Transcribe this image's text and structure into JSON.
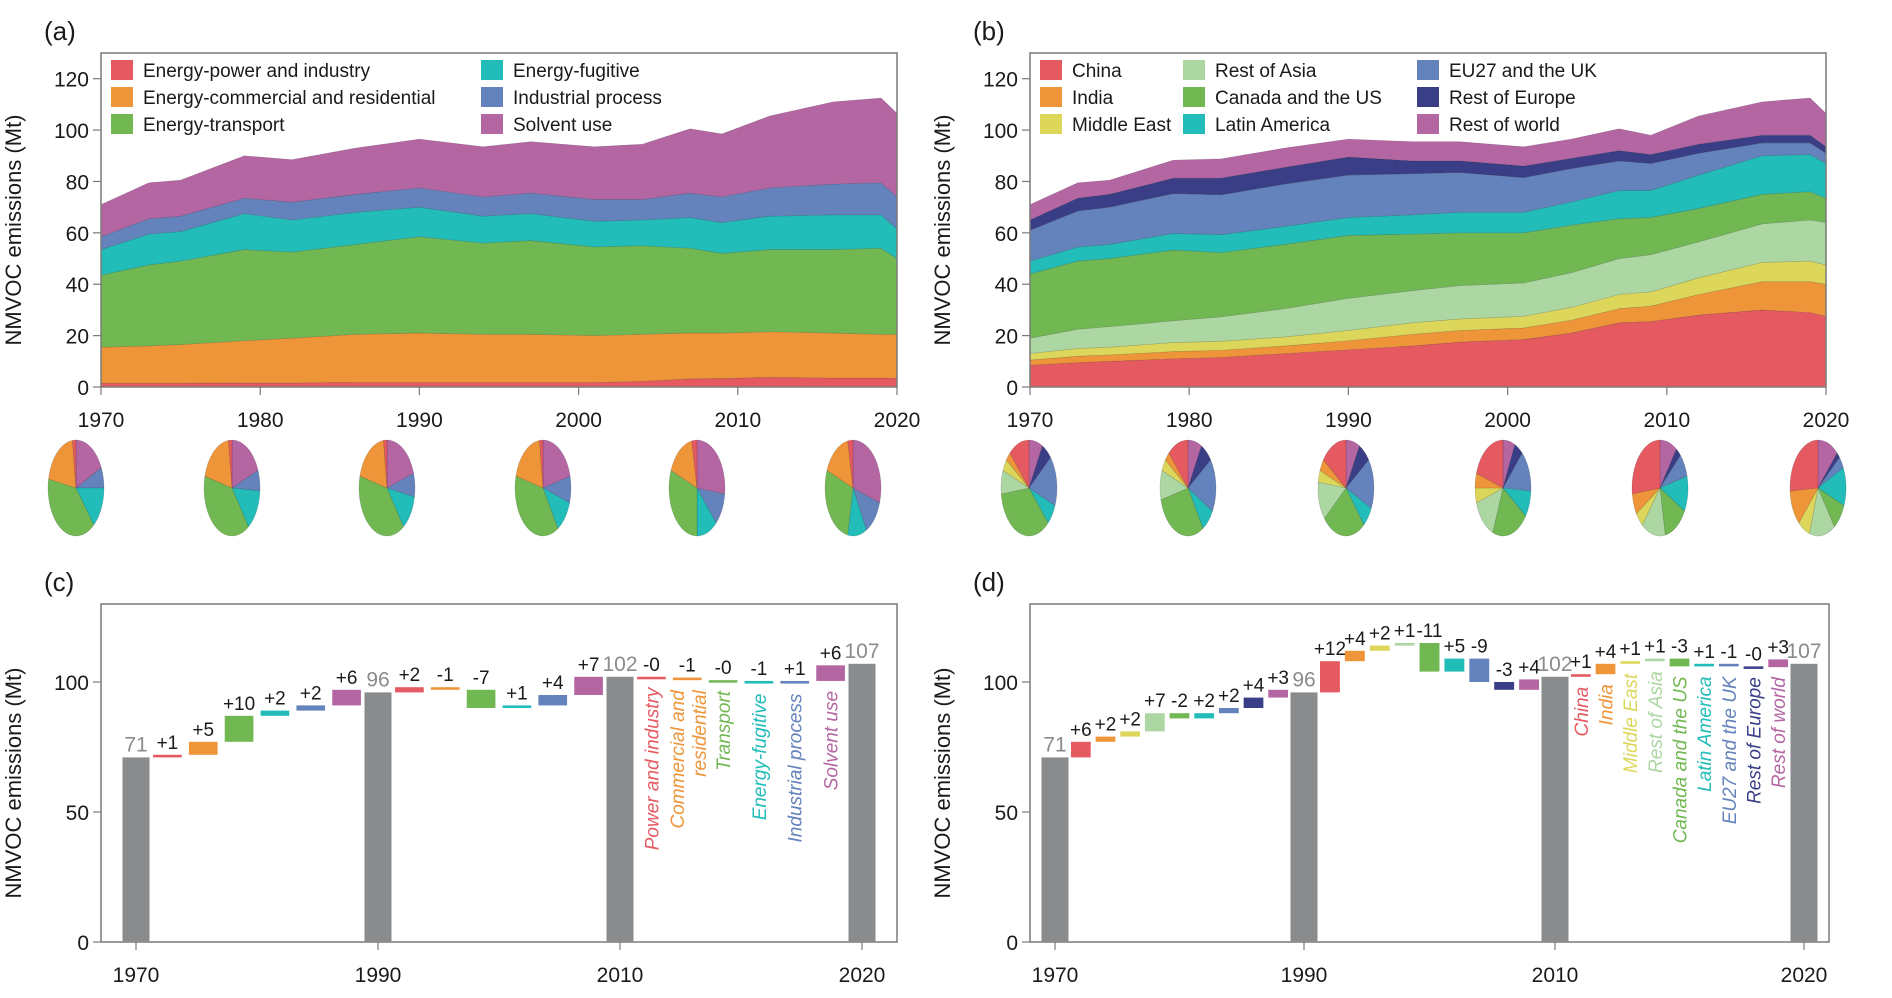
{
  "colors": {
    "energy_power": "#e55a61",
    "energy_comm": "#ee9539",
    "energy_transport": "#71b853",
    "energy_fugitive": "#22bcb9",
    "industrial": "#6482bb",
    "solvent": "#b466a3",
    "china": "#e55a61",
    "india": "#ee9539",
    "middle_east": "#dcd75a",
    "rest_asia": "#acd6a2",
    "canada_us": "#71b853",
    "latin_america": "#22bcb9",
    "eu_uk": "#6482bb",
    "rest_europe": "#393e86",
    "rest_world": "#b466a3",
    "total_bar": "#8a8b8d",
    "axis": "#7a7a7a"
  },
  "chart_data": [
    {
      "panel": "(a)",
      "type": "area",
      "ylabel": "NMVOC emissions (Mt)",
      "xlabel": "",
      "xlim": [
        1970,
        2020
      ],
      "ylim": [
        0,
        130
      ],
      "yticks": [
        0,
        20,
        40,
        60,
        80,
        100,
        120
      ],
      "xticks": [
        1970,
        1980,
        1990,
        2000,
        2010,
        2020
      ],
      "legend_position": "top-left",
      "x": [
        1970,
        1973,
        1975,
        1979,
        1982,
        1986,
        1990,
        1994,
        1997,
        2001,
        2004,
        2007,
        2009,
        2012,
        2016,
        2019,
        2020
      ],
      "series": [
        {
          "name": "Energy-power and industry",
          "color_key": "energy_power",
          "values": [
            1.5,
            1.5,
            1.5,
            1.6,
            1.6,
            1.8,
            1.8,
            1.8,
            1.8,
            1.8,
            2.2,
            3.2,
            3.3,
            3.8,
            3.5,
            3.5,
            3.4
          ]
        },
        {
          "name": "Energy-commercial and residential",
          "color_key": "energy_comm",
          "values": [
            14.0,
            14.5,
            15.0,
            16.4,
            17.4,
            18.7,
            19.2,
            18.7,
            18.7,
            18.2,
            18.3,
            17.8,
            17.7,
            17.7,
            17.5,
            17.0,
            17.1
          ]
        },
        {
          "name": "Energy-transport",
          "color_key": "energy_transport",
          "values": [
            28.0,
            31.5,
            32.5,
            35.5,
            33.5,
            35.0,
            37.5,
            35.5,
            36.5,
            34.5,
            34.5,
            33.0,
            31.0,
            32.0,
            32.5,
            33.5,
            29.5
          ]
        },
        {
          "name": "Energy-fugitive",
          "color_key": "energy_fugitive",
          "values": [
            10.0,
            12.0,
            11.5,
            14.0,
            12.5,
            12.5,
            11.5,
            10.5,
            10.5,
            10.0,
            10.0,
            12.0,
            12.0,
            13.0,
            13.5,
            13.0,
            11.5
          ]
        },
        {
          "name": "Industrial process",
          "color_key": "industrial",
          "values": [
            5.0,
            6.0,
            6.0,
            6.0,
            7.0,
            7.0,
            7.5,
            7.5,
            8.0,
            8.5,
            8.0,
            9.5,
            10.0,
            11.0,
            12.0,
            12.5,
            12.5
          ]
        },
        {
          "name": "Solvent use",
          "color_key": "solvent",
          "values": [
            12.5,
            14.0,
            14.0,
            16.5,
            16.5,
            18.0,
            19.0,
            19.5,
            20.0,
            20.5,
            21.5,
            25.0,
            24.5,
            28.0,
            32.0,
            33.0,
            32.5
          ]
        }
      ]
    },
    {
      "panel": "(b)",
      "type": "area",
      "ylabel": "NMVOC emissions (Mt)",
      "xlabel": "",
      "xlim": [
        1970,
        2020
      ],
      "ylim": [
        0,
        130
      ],
      "yticks": [
        0,
        20,
        40,
        60,
        80,
        100,
        120
      ],
      "xticks": [
        1970,
        1980,
        1990,
        2000,
        2010,
        2020
      ],
      "legend_position": "top-left",
      "x": [
        1970,
        1973,
        1975,
        1979,
        1982,
        1986,
        1990,
        1994,
        1997,
        2001,
        2004,
        2007,
        2009,
        2012,
        2016,
        2019,
        2020
      ],
      "series": [
        {
          "name": "China",
          "color_key": "china",
          "values": [
            8.5,
            9.5,
            10.0,
            11.0,
            11.5,
            13.0,
            14.5,
            16.0,
            17.5,
            18.5,
            21.0,
            25.0,
            25.5,
            28.0,
            30.0,
            29.0,
            27.5
          ]
        },
        {
          "name": "India",
          "color_key": "india",
          "values": [
            2.0,
            2.5,
            2.5,
            2.8,
            2.8,
            3.0,
            3.5,
            4.5,
            4.5,
            4.5,
            5.0,
            5.5,
            6.0,
            8.0,
            11.0,
            12.0,
            12.5
          ]
        },
        {
          "name": "Middle East",
          "color_key": "middle_east",
          "values": [
            2.5,
            3.0,
            3.0,
            3.5,
            3.5,
            3.5,
            4.0,
            4.5,
            4.5,
            4.5,
            5.0,
            5.5,
            5.5,
            6.5,
            7.5,
            8.0,
            7.5
          ]
        },
        {
          "name": "Rest of Asia",
          "color_key": "rest_asia",
          "values": [
            6.0,
            7.5,
            8.0,
            8.5,
            9.5,
            11.0,
            12.5,
            12.5,
            13.0,
            13.0,
            13.5,
            14.0,
            14.5,
            14.0,
            15.0,
            16.0,
            16.5
          ]
        },
        {
          "name": "Canada and the US",
          "color_key": "canada_us",
          "values": [
            25.0,
            26.5,
            26.5,
            27.5,
            25.0,
            25.0,
            24.5,
            22.0,
            20.5,
            19.5,
            18.5,
            15.5,
            14.5,
            13.0,
            11.5,
            11.0,
            9.5
          ]
        },
        {
          "name": "Latin America",
          "color_key": "latin_america",
          "values": [
            5.0,
            5.5,
            5.5,
            6.5,
            7.0,
            7.0,
            7.0,
            7.5,
            8.0,
            8.0,
            9.0,
            11.0,
            10.5,
            13.0,
            15.0,
            14.5,
            13.5
          ]
        },
        {
          "name": "EU27 and the UK",
          "color_key": "eu_uk",
          "values": [
            12.0,
            14.0,
            14.5,
            15.5,
            15.5,
            16.5,
            16.5,
            16.0,
            15.5,
            13.5,
            13.0,
            11.5,
            10.5,
            8.5,
            5.0,
            4.5,
            4.0
          ]
        },
        {
          "name": "Rest of Europe",
          "color_key": "rest_europe",
          "values": [
            4.0,
            5.0,
            5.0,
            6.0,
            6.5,
            6.5,
            7.0,
            5.0,
            4.5,
            4.5,
            4.0,
            4.0,
            3.5,
            3.5,
            3.0,
            3.0,
            2.5
          ]
        },
        {
          "name": "Rest of world",
          "color_key": "rest_world",
          "values": [
            6.0,
            6.0,
            5.5,
            7.0,
            7.5,
            7.5,
            7.0,
            7.5,
            7.5,
            7.5,
            7.5,
            8.5,
            7.5,
            11.0,
            13.0,
            14.5,
            13.0
          ]
        }
      ]
    },
    {
      "panel": "(a) pies",
      "type": "pie",
      "years": [
        1970,
        1980,
        1990,
        2000,
        2010,
        2020
      ],
      "categories": [
        "Energy-power and industry",
        "Energy-commercial and residential",
        "Energy-transport",
        "Energy-fugitive",
        "Industrial process",
        "Solvent use"
      ],
      "color_keys": [
        "energy_power",
        "energy_comm",
        "energy_transport",
        "energy_fugitive",
        "industrial",
        "solvent"
      ],
      "shares_percent": [
        [
          2,
          20,
          39,
          14,
          7,
          18
        ],
        [
          2,
          19,
          39,
          14,
          7,
          19
        ],
        [
          2,
          19,
          39,
          12,
          8,
          20
        ],
        [
          2,
          19,
          38,
          11,
          9,
          21
        ],
        [
          3,
          16,
          31,
          12,
          11,
          27
        ],
        [
          3,
          16,
          28,
          11,
          12,
          30
        ]
      ]
    },
    {
      "panel": "(b) pies",
      "type": "pie",
      "years": [
        1970,
        1980,
        1990,
        2000,
        2010,
        2020
      ],
      "categories": [
        "China",
        "India",
        "Middle East",
        "Rest of Asia",
        "Canada and the US",
        "Latin America",
        "EU27 and the UK",
        "Rest of Europe",
        "Rest of world"
      ],
      "color_keys": [
        "china",
        "india",
        "middle_east",
        "rest_asia",
        "canada_us",
        "latin_america",
        "eu_uk",
        "rest_europe",
        "rest_world"
      ],
      "shares_percent": [
        [
          12,
          3,
          4,
          8,
          35,
          7,
          17,
          6,
          8
        ],
        [
          12,
          3,
          4,
          10,
          30,
          8,
          18,
          7,
          8
        ],
        [
          15,
          4,
          4,
          13,
          25,
          7,
          17,
          7,
          8
        ],
        [
          20,
          5,
          5,
          14,
          21,
          9,
          14,
          5,
          7
        ],
        [
          27,
          7,
          5,
          14,
          14,
          12,
          8,
          3,
          10
        ],
        [
          26,
          12,
          7,
          15,
          9,
          13,
          4,
          2,
          12
        ]
      ]
    },
    {
      "panel": "(c)",
      "type": "bar",
      "subtype": "waterfall",
      "ylabel": "NMVOC emissions (Mt)",
      "ylim": [
        0,
        130
      ],
      "yticks": [
        0,
        50,
        100
      ],
      "xticks": [
        1970,
        1990,
        2010,
        2020
      ],
      "totals": [
        {
          "year": 1970,
          "value": 71,
          "label": "71"
        },
        {
          "year": 1990,
          "value": 96,
          "label": "96"
        },
        {
          "year": 2010,
          "value": 102,
          "label": "102"
        },
        {
          "year": 2020,
          "value": 107,
          "label": "107"
        }
      ],
      "category_labels": [
        "Power and industry",
        "Commercial and residential",
        "Transport",
        "Energy-fugitive",
        "Industrial process",
        "Solvent use"
      ],
      "category_color_keys": [
        "energy_power",
        "energy_comm",
        "energy_transport",
        "energy_fugitive",
        "industrial",
        "solvent"
      ],
      "periods": [
        {
          "from": 1970,
          "to": 1990,
          "changes": [
            1,
            5,
            10,
            2,
            2,
            6
          ],
          "labels": [
            "+1",
            "+5",
            "+10",
            "+2",
            "+2",
            "+6"
          ]
        },
        {
          "from": 1990,
          "to": 2010,
          "changes": [
            2,
            -1,
            -7,
            1,
            4,
            7
          ],
          "labels": [
            "+2",
            "-1",
            "-7",
            "+1",
            "+4",
            "+7"
          ]
        },
        {
          "from": 2010,
          "to": 2020,
          "changes": [
            -0.3,
            -1,
            -0.3,
            -1,
            1,
            6
          ],
          "labels": [
            "-0",
            "-1",
            "-0",
            "-1",
            "+1",
            "+6"
          ]
        }
      ]
    },
    {
      "panel": "(d)",
      "type": "bar",
      "subtype": "waterfall",
      "ylabel": "NMVOC emissions (Mt)",
      "ylim": [
        0,
        130
      ],
      "yticks": [
        0,
        50,
        100
      ],
      "xticks": [
        1970,
        1990,
        2010,
        2020
      ],
      "totals": [
        {
          "year": 1970,
          "value": 71,
          "label": "71"
        },
        {
          "year": 1990,
          "value": 96,
          "label": "96"
        },
        {
          "year": 2010,
          "value": 102,
          "label": "102"
        },
        {
          "year": 2020,
          "value": 107,
          "label": "107"
        }
      ],
      "category_labels": [
        "China",
        "India",
        "Middle East",
        "Rest of Asia",
        "Canada and the US",
        "Latin America",
        "EU27 and the UK",
        "Rest of Europe",
        "Rest of world"
      ],
      "category_color_keys": [
        "china",
        "india",
        "middle_east",
        "rest_asia",
        "canada_us",
        "latin_america",
        "eu_uk",
        "rest_europe",
        "rest_world"
      ],
      "periods": [
        {
          "from": 1970,
          "to": 1990,
          "changes": [
            6,
            2,
            2,
            7,
            -2,
            2,
            2,
            4,
            3
          ],
          "labels": [
            "+6",
            "+2",
            "+2",
            "+7",
            "-2",
            "+2",
            "+2",
            "+4",
            "+3"
          ]
        },
        {
          "from": 1990,
          "to": 2010,
          "changes": [
            12,
            4,
            2,
            1,
            -11,
            5,
            -9,
            -3,
            4
          ],
          "labels": [
            "+12",
            "+4",
            "+2",
            "+1",
            "-11",
            "+5",
            "-9",
            "-3",
            "+4"
          ]
        },
        {
          "from": 2010,
          "to": 2020,
          "changes": [
            1,
            4,
            1,
            1,
            -3,
            1,
            -1,
            -0.3,
            3
          ],
          "labels": [
            "+1",
            "+4",
            "+1",
            "+1",
            "-3",
            "+1",
            "-1",
            "-0",
            "+3"
          ]
        }
      ]
    }
  ]
}
